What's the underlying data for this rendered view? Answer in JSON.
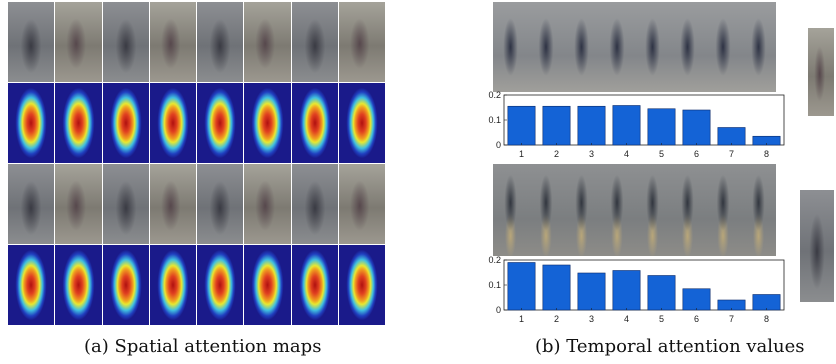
{
  "captions": {
    "left": "(a) Spatial attention maps",
    "right": "(b) Temporal attention values"
  },
  "chart_data": [
    {
      "type": "bar",
      "categories": [
        "1",
        "2",
        "3",
        "4",
        "5",
        "6",
        "7",
        "8"
      ],
      "values": [
        0.155,
        0.155,
        0.155,
        0.158,
        0.145,
        0.14,
        0.07,
        0.035
      ],
      "ylim": [
        0,
        0.2
      ],
      "yticks": [
        "0",
        "0.1",
        "0.2"
      ],
      "bar_color": "#1463d6",
      "grid": false
    },
    {
      "type": "bar",
      "categories": [
        "1",
        "2",
        "3",
        "4",
        "5",
        "6",
        "7",
        "8"
      ],
      "values": [
        0.19,
        0.18,
        0.148,
        0.158,
        0.138,
        0.085,
        0.04,
        0.062
      ],
      "ylim": [
        0,
        0.2
      ],
      "yticks": [
        "0",
        "0.1",
        "0.2"
      ],
      "bar_color": "#1463d6",
      "grid": false
    }
  ]
}
